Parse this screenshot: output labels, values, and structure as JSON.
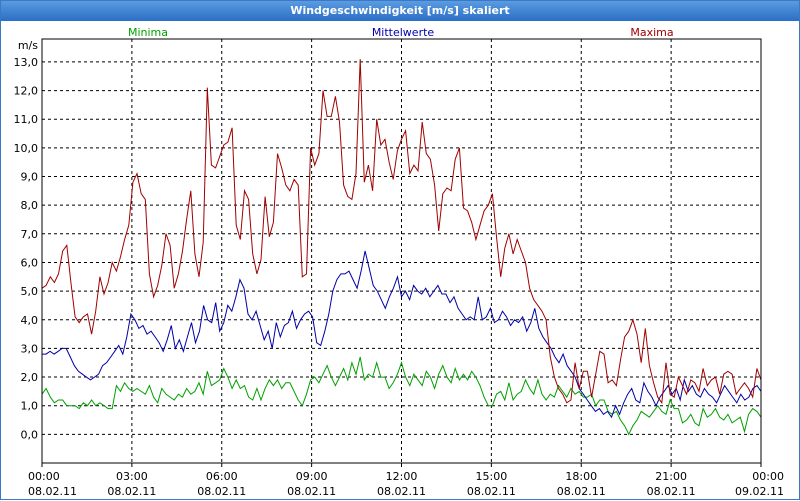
{
  "window": {
    "title": "Windgeschwindigkeit [m/s] skaliert"
  },
  "chart_data": {
    "type": "line",
    "title": "Windgeschwindigkeit [m/s] skaliert",
    "ylabel": "m/s",
    "ylim": [
      -1,
      13.8
    ],
    "yticks": [
      "0,0",
      "1,0",
      "2,0",
      "3,0",
      "4,0",
      "5,0",
      "6,0",
      "7,0",
      "8,0",
      "9,0",
      "10,0",
      "11,0",
      "12,0",
      "13,0"
    ],
    "xlim": [
      0,
      24
    ],
    "xticks": [
      {
        "time": "00:00",
        "date": "08.02.11"
      },
      {
        "time": "03:00",
        "date": "08.02.11"
      },
      {
        "time": "06:00",
        "date": "08.02.11"
      },
      {
        "time": "09:00",
        "date": "08.02.11"
      },
      {
        "time": "12:00",
        "date": "08.02.11"
      },
      {
        "time": "15:00",
        "date": "08.02.11"
      },
      {
        "time": "18:00",
        "date": "08.02.11"
      },
      {
        "time": "21:00",
        "date": "08.02.11"
      },
      {
        "time": "00:00",
        "date": "09.02.11"
      }
    ],
    "grid": true,
    "series": [
      {
        "name": "Minima",
        "color": "#00a000",
        "values": [
          1.4,
          1.6,
          1.3,
          1.1,
          1.2,
          1.2,
          1.0,
          1.0,
          1.0,
          0.9,
          1.1,
          1.0,
          1.2,
          1.0,
          1.1,
          1.0,
          0.9,
          0.9,
          1.7,
          1.5,
          1.8,
          1.6,
          1.5,
          1.6,
          1.5,
          1.4,
          1.7,
          1.3,
          1.1,
          1.6,
          1.4,
          1.3,
          1.2,
          1.4,
          1.3,
          1.6,
          1.4,
          1.5,
          1.8,
          1.4,
          2.2,
          1.7,
          1.8,
          1.9,
          2.3,
          2.0,
          1.6,
          1.9,
          1.6,
          1.7,
          1.3,
          1.2,
          1.6,
          1.2,
          1.6,
          1.9,
          1.7,
          1.9,
          1.6,
          1.8,
          1.8,
          1.5,
          1.2,
          1.0,
          1.4,
          1.9,
          2.0,
          1.8,
          2.1,
          2.4,
          2.0,
          1.7,
          2.0,
          2.3,
          1.9,
          2.5,
          2.1,
          2.7,
          1.9,
          2.1,
          2.0,
          2.5,
          2.0,
          2.0,
          1.6,
          1.8,
          2.1,
          2.5,
          2.0,
          1.7,
          2.1,
          1.9,
          1.7,
          2.2,
          2.0,
          1.6,
          2.1,
          2.4,
          2.0,
          1.8,
          2.3,
          1.9,
          2.1,
          1.9,
          2.2,
          2.0,
          1.7,
          1.3,
          1.0,
          1.0,
          1.4,
          1.5,
          1.2,
          1.8,
          1.2,
          1.4,
          1.5,
          1.9,
          1.6,
          1.4,
          1.9,
          1.4,
          1.2,
          1.4,
          1.3,
          1.7,
          1.5,
          1.3,
          1.6,
          1.4,
          1.5,
          1.3,
          1.3,
          1.4,
          1.0,
          1.2,
          1.2,
          0.8,
          0.7,
          0.8,
          0.5,
          0.3,
          0.0,
          0.3,
          0.5,
          0.8,
          0.7,
          0.6,
          0.8,
          1.0,
          0.8,
          0.7,
          1.2,
          0.9,
          0.9,
          0.4,
          0.5,
          0.7,
          0.4,
          0.3,
          0.9,
          0.6,
          0.7,
          0.9,
          0.6,
          0.5,
          0.7,
          0.4,
          0.5,
          0.6,
          0.1,
          0.7,
          0.9,
          0.8,
          0.6
        ]
      },
      {
        "name": "Mittelwerte",
        "color": "#0000a8",
        "values": [
          2.8,
          2.8,
          2.9,
          2.8,
          2.9,
          3.0,
          3.0,
          2.7,
          2.4,
          2.2,
          2.1,
          2.0,
          1.9,
          2.0,
          2.1,
          2.4,
          2.5,
          2.7,
          2.9,
          3.1,
          2.8,
          3.4,
          4.2,
          4.0,
          3.7,
          3.8,
          3.5,
          3.6,
          3.4,
          3.2,
          2.9,
          3.3,
          3.8,
          3.0,
          3.3,
          2.9,
          3.4,
          3.9,
          3.2,
          3.6,
          4.5,
          4.0,
          3.9,
          4.6,
          3.6,
          3.9,
          4.5,
          4.3,
          4.8,
          5.4,
          5.1,
          4.2,
          4.0,
          4.3,
          3.8,
          3.3,
          3.6,
          3.0,
          3.9,
          3.4,
          3.8,
          3.9,
          4.3,
          3.7,
          4.0,
          4.2,
          4.3,
          4.1,
          3.2,
          3.1,
          3.6,
          4.2,
          5.0,
          5.4,
          5.6,
          5.6,
          5.7,
          5.4,
          5.1,
          5.7,
          6.4,
          5.8,
          5.2,
          5.0,
          4.7,
          4.4,
          4.8,
          5.1,
          5.5,
          4.8,
          5.0,
          4.7,
          5.2,
          5.0,
          4.9,
          5.1,
          4.8,
          5.0,
          5.2,
          4.9,
          4.9,
          4.6,
          4.8,
          4.4,
          4.2,
          4.0,
          4.1,
          4.0,
          4.8,
          4.0,
          4.1,
          4.4,
          3.9,
          4.0,
          4.3,
          4.1,
          3.8,
          4.0,
          3.9,
          4.1,
          3.6,
          3.9,
          4.4,
          3.7,
          3.4,
          3.2,
          3.0,
          2.7,
          2.5,
          2.8,
          2.4,
          2.2,
          2.0,
          1.6,
          1.4,
          1.2,
          1.0,
          0.8,
          0.9,
          0.7,
          0.8,
          0.6,
          1.0,
          0.7,
          1.1,
          1.4,
          1.6,
          1.2,
          1.1,
          1.8,
          1.5,
          1.3,
          1.0,
          1.3,
          1.5,
          1.7,
          1.4,
          1.6,
          1.2,
          1.9,
          1.5,
          1.7,
          1.4,
          1.3,
          1.6,
          1.4,
          1.3,
          1.1,
          1.4,
          1.7,
          1.5,
          1.3,
          1.1,
          1.4,
          1.2,
          1.3,
          1.6,
          1.7,
          1.5
        ]
      },
      {
        "name": "Maxima",
        "color": "#a00000",
        "values": [
          5.1,
          5.2,
          5.5,
          5.3,
          5.6,
          6.4,
          6.6,
          5.3,
          4.1,
          3.9,
          4.1,
          4.2,
          3.5,
          4.3,
          5.5,
          4.9,
          5.3,
          6.0,
          5.7,
          6.2,
          6.8,
          7.3,
          8.8,
          9.1,
          8.4,
          8.2,
          5.6,
          4.8,
          5.2,
          5.9,
          7.0,
          6.6,
          5.1,
          5.6,
          6.4,
          7.5,
          8.5,
          6.3,
          5.5,
          6.7,
          12.1,
          9.4,
          9.3,
          9.7,
          10.1,
          10.2,
          10.7,
          7.3,
          6.8,
          8.5,
          8.2,
          6.3,
          5.6,
          6.1,
          8.3,
          6.9,
          7.4,
          9.8,
          9.3,
          8.7,
          8.5,
          8.9,
          8.7,
          5.5,
          5.6,
          10.0,
          9.4,
          9.8,
          12.0,
          11.1,
          11.1,
          11.8,
          10.9,
          8.7,
          8.3,
          8.2,
          9.1,
          13.1,
          8.8,
          9.4,
          8.5,
          11.0,
          10.1,
          10.3,
          9.5,
          8.9,
          9.9,
          10.3,
          10.6,
          9.1,
          9.4,
          9.2,
          10.9,
          9.8,
          9.6,
          8.7,
          7.1,
          8.4,
          8.6,
          8.5,
          9.6,
          10.0,
          7.9,
          7.8,
          7.4,
          6.8,
          7.3,
          7.8,
          8.0,
          8.4,
          6.9,
          5.5,
          6.5,
          7.0,
          6.3,
          6.8,
          6.4,
          6.0,
          5.1,
          4.7,
          4.5,
          4.3,
          4.0,
          2.7,
          2.0,
          1.6,
          1.4,
          1.1,
          1.2,
          2.5,
          1.6,
          2.2,
          2.2,
          1.3,
          2.1,
          2.9,
          2.8,
          1.8,
          1.9,
          1.7,
          2.6,
          3.4,
          3.6,
          4.0,
          3.5,
          2.5,
          3.7,
          2.4,
          1.8,
          1.3,
          1.1,
          2.5,
          1.4,
          1.3,
          2.0,
          1.7,
          1.4,
          1.9,
          1.8,
          1.5,
          2.3,
          1.7,
          1.9,
          2.0,
          1.4,
          2.1,
          2.2,
          2.1,
          1.4,
          1.6,
          1.8,
          1.6,
          1.3,
          2.3,
          1.9
        ]
      }
    ]
  }
}
